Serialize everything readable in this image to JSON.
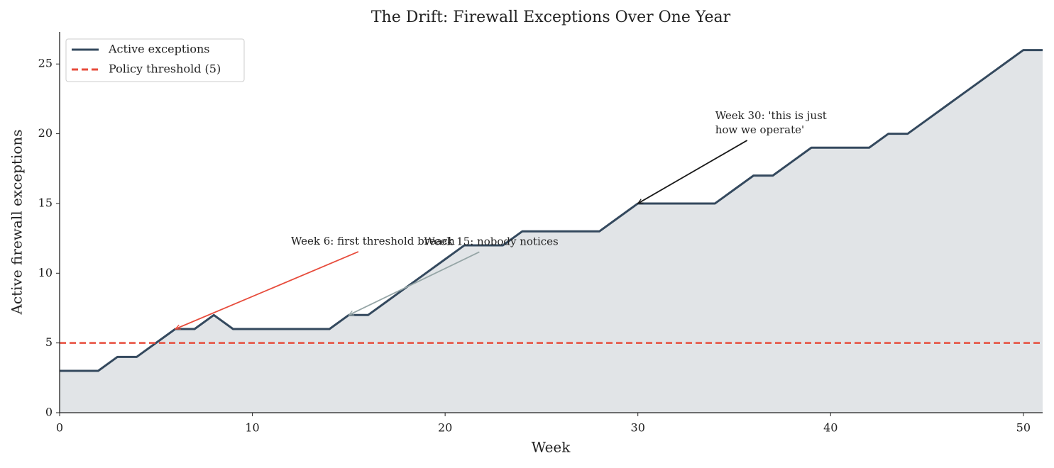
{
  "chart_data": {
    "type": "line",
    "title": "The Drift: Firewall Exceptions Over One Year",
    "x_label": "Week",
    "y_label": "Active firewall exceptions",
    "x": [
      0,
      1,
      2,
      3,
      4,
      5,
      6,
      7,
      8,
      9,
      10,
      11,
      12,
      13,
      14,
      15,
      16,
      17,
      18,
      19,
      20,
      21,
      22,
      23,
      24,
      25,
      26,
      27,
      28,
      29,
      30,
      31,
      32,
      33,
      34,
      35,
      36,
      37,
      38,
      39,
      40,
      41,
      42,
      43,
      44,
      45,
      46,
      47,
      48,
      49,
      50,
      51
    ],
    "series": [
      {
        "name": "Active exceptions",
        "color": "#34495e",
        "fill": true,
        "values": [
          3,
          3,
          3,
          4,
          4,
          5,
          6,
          6,
          7,
          6,
          6,
          6,
          6,
          6,
          6,
          7,
          7,
          8,
          9,
          10,
          11,
          12,
          12,
          12,
          13,
          13,
          13,
          13,
          13,
          14,
          15,
          15,
          15,
          15,
          15,
          16,
          17,
          17,
          18,
          19,
          19,
          19,
          19,
          20,
          20,
          21,
          22,
          23,
          24,
          25,
          26,
          26
        ]
      }
    ],
    "threshold": {
      "name": "Policy threshold (5)",
      "value": 5,
      "color": "#e74c3c"
    },
    "annotations": [
      {
        "text": [
          "Week 6: first threshold breach"
        ],
        "x": 6,
        "y": 6,
        "color": "#e74c3c"
      },
      {
        "text": [
          "Week 15: nobody notices"
        ],
        "x": 15,
        "y": 7,
        "color": "#95a5a6"
      },
      {
        "text": [
          "Week 30: 'this is just",
          "how we operate'"
        ],
        "x": 30,
        "y": 15,
        "color": "#1a1a1a"
      }
    ],
    "xlim": [
      0,
      51
    ],
    "ylim": [
      0,
      27.3
    ],
    "xticks": [
      0,
      10,
      20,
      30,
      40,
      50
    ],
    "yticks": [
      0,
      5,
      10,
      15,
      20,
      25
    ],
    "legend": "upper left"
  }
}
